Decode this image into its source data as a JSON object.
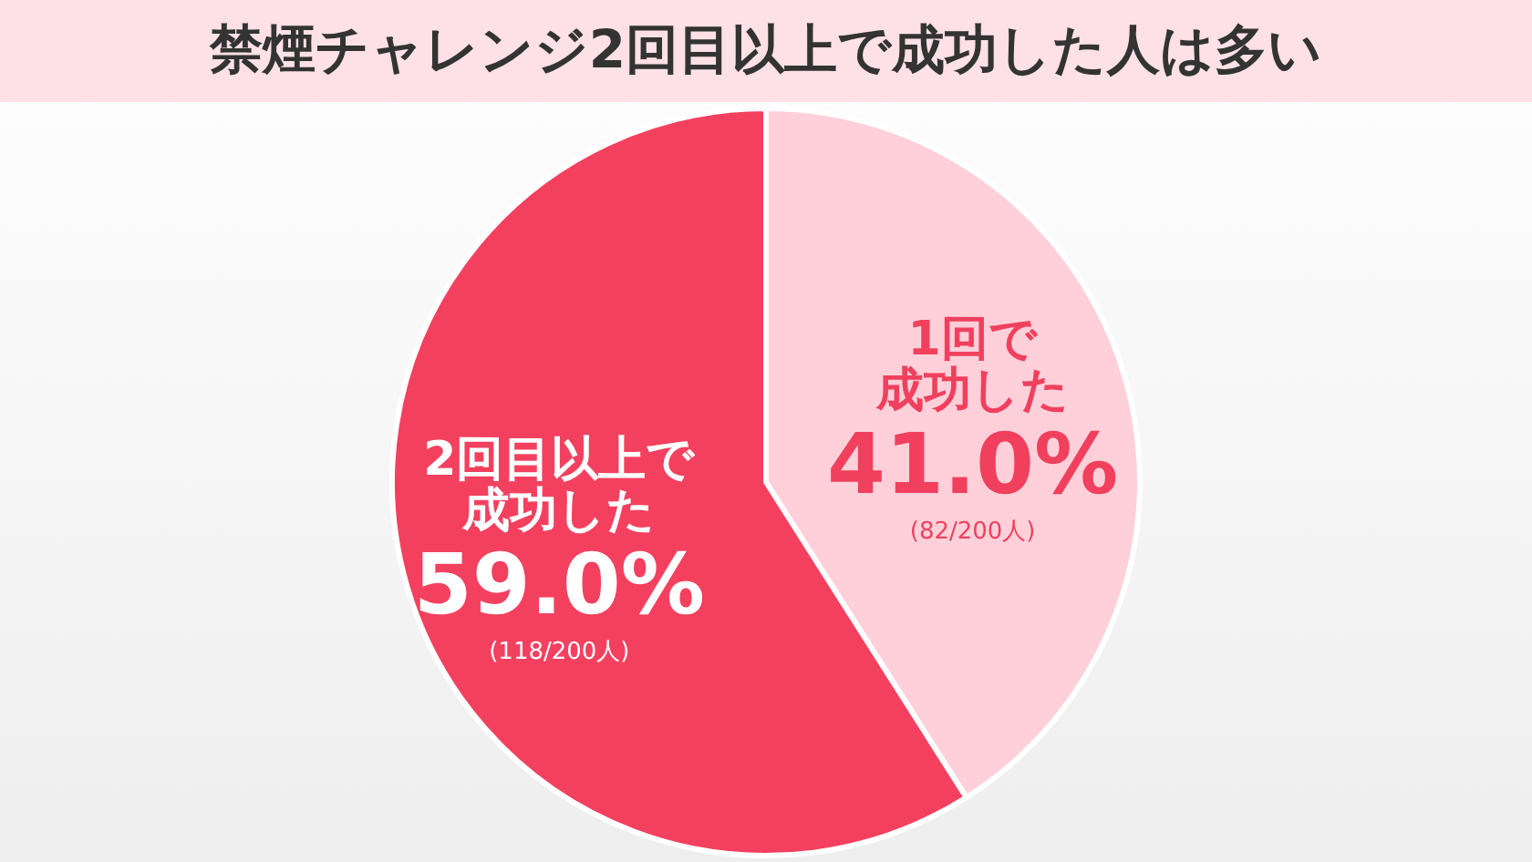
{
  "chart_data": {
    "type": "pie",
    "title": "禁煙チャレンジ2回目以上で成功した人は多い",
    "categories": [
      "1回で成功した",
      "2回目以上で成功した"
    ],
    "values": [
      41.0,
      59.0
    ],
    "colors": [
      "#ffd0d9",
      "#f4405f"
    ],
    "value_labels": [
      "41.0%",
      "59.0%"
    ],
    "annotations": [
      "(82/200人)",
      "(118/200人)"
    ]
  }
}
